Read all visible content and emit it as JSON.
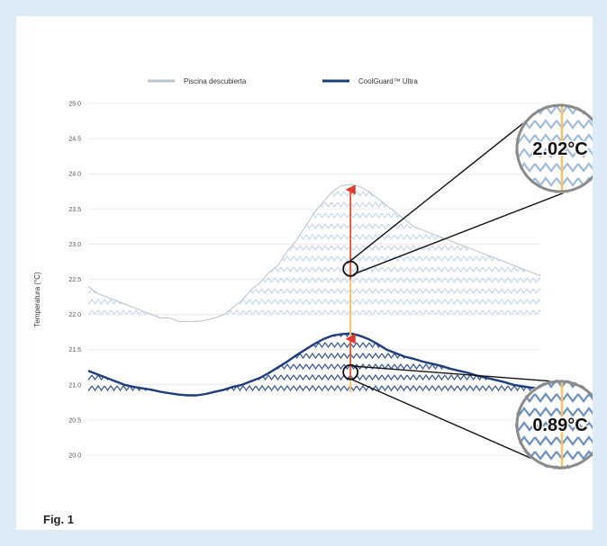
{
  "figure_label": "Fig. 1",
  "chart_data": {
    "type": "line",
    "ylabel": "Temperatura (°C)",
    "ylim": [
      20.0,
      25.0
    ],
    "yticks": [
      "25.0",
      "24.5",
      "24.0",
      "23.5",
      "23.0",
      "22.5",
      "22.0",
      "21.5",
      "21.0",
      "20.5",
      "20.0"
    ],
    "grid": true,
    "legend": "top-center",
    "x": [
      0,
      2,
      4,
      6,
      8,
      10,
      12,
      14,
      16,
      18,
      20,
      22,
      24,
      26,
      28,
      30,
      32,
      34,
      36,
      38,
      40,
      42,
      44,
      46,
      48,
      50,
      52,
      54,
      56,
      58,
      60,
      62,
      64,
      66,
      68,
      70,
      72,
      74,
      76,
      78,
      80,
      82,
      84,
      86,
      88,
      90,
      92,
      94,
      96,
      98,
      100
    ],
    "series": [
      {
        "name": "Piscina descubierta",
        "color": "#b9c3cc",
        "values": [
          22.4,
          22.3,
          22.25,
          22.2,
          22.15,
          22.1,
          22.05,
          22.0,
          21.95,
          21.95,
          21.9,
          21.9,
          21.9,
          21.92,
          21.95,
          22.0,
          22.1,
          22.2,
          22.35,
          22.45,
          22.6,
          22.7,
          22.9,
          23.05,
          23.25,
          23.45,
          23.6,
          23.75,
          23.83,
          23.85,
          23.82,
          23.75,
          23.65,
          23.55,
          23.45,
          23.35,
          23.25,
          23.2,
          23.15,
          23.1,
          23.05,
          23.0,
          22.95,
          22.9,
          22.85,
          22.8,
          22.75,
          22.7,
          22.65,
          22.6,
          22.55
        ]
      },
      {
        "name": "CoolGuard™ Ultra",
        "color": "#1f3d7a",
        "values": [
          21.2,
          21.15,
          21.1,
          21.05,
          21.0,
          20.97,
          20.95,
          20.93,
          20.9,
          20.88,
          20.86,
          20.85,
          20.85,
          20.87,
          20.9,
          20.93,
          20.97,
          21.0,
          21.05,
          21.1,
          21.17,
          21.25,
          21.33,
          21.42,
          21.5,
          21.58,
          21.65,
          21.7,
          21.72,
          21.73,
          21.7,
          21.65,
          21.58,
          21.5,
          21.45,
          21.4,
          21.37,
          21.33,
          21.3,
          21.27,
          21.23,
          21.2,
          21.17,
          21.13,
          21.1,
          21.07,
          21.04,
          21.0,
          20.98,
          20.96,
          20.95
        ]
      }
    ],
    "annotations": [
      {
        "text": "2.02°C",
        "x": 58,
        "y": 22.65
      },
      {
        "text": "0.89°C",
        "x": 58,
        "y": 21.18
      }
    ]
  }
}
